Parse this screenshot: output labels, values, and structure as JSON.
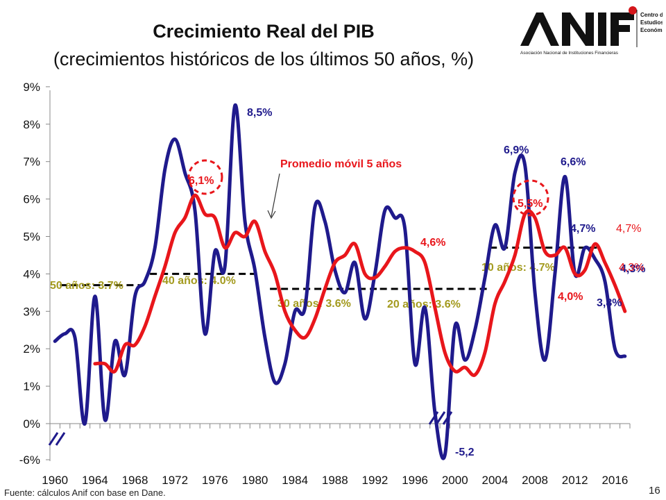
{
  "title": "Crecimiento Real del PIB",
  "subtitle": "(crecimientos históricos de los últimos 50 años, %)",
  "logo": {
    "brand": "ANIF",
    "caption": "Asociación Nacional de Instituciones Financieras",
    "center": [
      "Centro de",
      "Estudios",
      "Económicos"
    ]
  },
  "source": "Fuente: cálculos Anif con base en Dane.",
  "page_number": "16",
  "colors": {
    "gdp": "#1f1a8c",
    "moving_avg": "#e8161b",
    "avg_label": "#a39a1e",
    "avg_line": "#000000"
  },
  "chart_data": {
    "type": "line",
    "x": [
      1960,
      1961,
      1962,
      1963,
      1964,
      1965,
      1966,
      1967,
      1968,
      1969,
      1970,
      1971,
      1972,
      1973,
      1974,
      1975,
      1976,
      1977,
      1978,
      1979,
      1980,
      1981,
      1982,
      1983,
      1984,
      1985,
      1986,
      1987,
      1988,
      1989,
      1990,
      1991,
      1992,
      1993,
      1994,
      1995,
      1996,
      1997,
      1998,
      1999,
      2000,
      2001,
      2002,
      2003,
      2004,
      2005,
      2006,
      2007,
      2008,
      2009,
      2010,
      2011,
      2012,
      2013,
      2014,
      2015,
      2016,
      2017
    ],
    "series": [
      {
        "name": "",
        "values": [
          2.2,
          2.4,
          2.3,
          0.0,
          3.4,
          0.1,
          2.2,
          1.3,
          3.4,
          3.8,
          4.7,
          6.8,
          7.6,
          6.7,
          5.7,
          2.4,
          4.6,
          4.2,
          8.5,
          5.4,
          4.1,
          2.3,
          1.1,
          1.6,
          3.0,
          3.1,
          5.8,
          5.4,
          4.1,
          3.5,
          4.3,
          2.8,
          4.0,
          5.7,
          5.5,
          5.2,
          1.6,
          3.1,
          0.3,
          -5.2,
          2.6,
          1.7,
          2.5,
          3.9,
          5.3,
          4.7,
          6.7,
          6.9,
          3.5,
          1.7,
          4.0,
          6.6,
          4.0,
          4.7,
          4.4,
          3.8,
          2.0,
          1.8
        ],
        "labels": [
          "8,5%",
          "6,9%",
          "6,6%",
          "4,7%",
          "4,3%",
          "3,8%",
          "-5,2"
        ]
      },
      {
        "name": "Promedio móvil 5 años",
        "values": [
          null,
          null,
          null,
          null,
          1.6,
          1.6,
          1.4,
          2.1,
          2.1,
          2.6,
          3.4,
          4.2,
          5.1,
          5.5,
          6.1,
          5.6,
          5.5,
          4.7,
          5.1,
          5.0,
          5.4,
          4.6,
          4.0,
          3.0,
          2.5,
          2.3,
          2.8,
          3.6,
          4.3,
          4.5,
          4.8,
          4.0,
          3.9,
          4.2,
          4.6,
          4.7,
          4.6,
          4.3,
          3.1,
          1.9,
          1.4,
          1.5,
          1.3,
          1.9,
          3.2,
          3.8,
          4.5,
          5.6,
          5.5,
          4.6,
          4.5,
          4.7,
          4.0,
          4.1,
          4.8,
          4.3,
          3.7,
          3.0
        ],
        "labels": [
          "6,1%",
          "4,6%",
          "5,5%",
          "4,0%",
          "4,7%",
          "4,3%"
        ]
      }
    ],
    "reference_lines": [
      {
        "label": "50 años: 3.7%",
        "value": 3.7,
        "from": 1961,
        "to": 1968
      },
      {
        "label": "40 años: 4.0%",
        "value": 4.0,
        "from": 1970,
        "to": 1980
      },
      {
        "label": "30 años: 3.6%",
        "value": 3.6,
        "from": 1982,
        "to": 1992
      },
      {
        "label": "20 años: 3.6%",
        "value": 3.6,
        "from": 1993,
        "to": 2003
      },
      {
        "label": "10 años: 4.7%",
        "value": 4.7,
        "from": 2004,
        "to": 2014
      }
    ],
    "annotation": "Promedio móvil 5 años",
    "y_tick_labels": [
      "-6%",
      "0%",
      "1%",
      "2%",
      "3%",
      "4%",
      "5%",
      "6%",
      "7%",
      "8%",
      "9%"
    ],
    "x_tick_labels": [
      "1960",
      "1964",
      "1968",
      "1972",
      "1976",
      "1980",
      "1984",
      "1988",
      "1992",
      "1996",
      "2000",
      "2004",
      "2008",
      "2012",
      "2016"
    ],
    "ylim": [
      -6,
      9
    ],
    "axis_break": "-6% shown one tick below 0%",
    "grid": false,
    "xlabel": "",
    "ylabel": ""
  }
}
